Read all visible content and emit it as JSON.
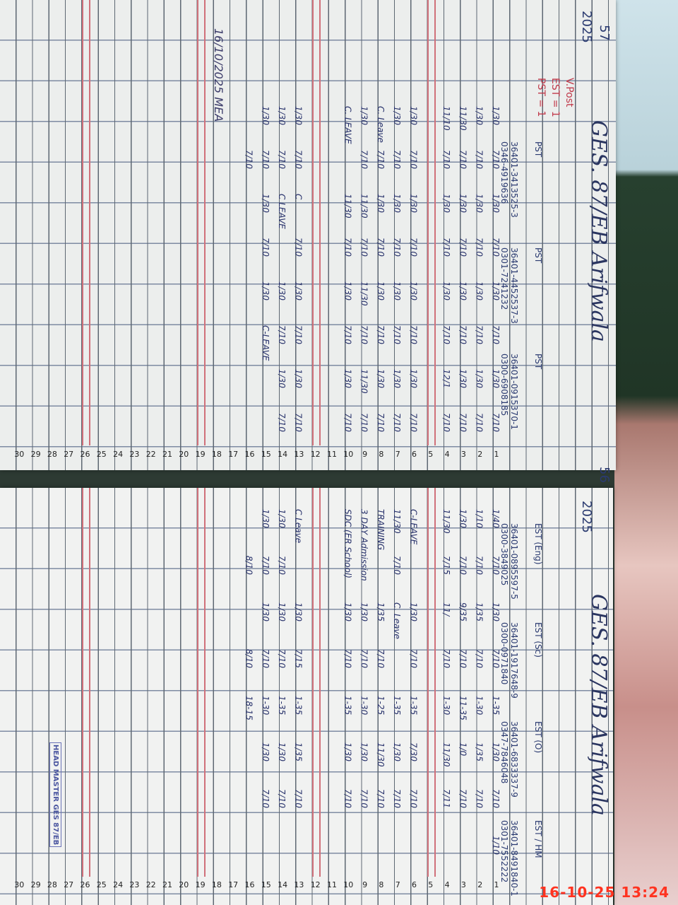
{
  "photo_timestamp": "16-10-25 13:24",
  "pages": [
    {
      "page_number": "57",
      "year": "2025",
      "school": "GES. 87/EB Arifwala",
      "posts_note": [
        "V.Post",
        "EST = 1",
        "PST = 1"
      ],
      "staff": [
        {
          "post": "PST",
          "cnic": "36401-3413525-3",
          "phone": "0346-4919636"
        },
        {
          "post": "PST",
          "cnic": "36401-4452537-3",
          "phone": "0301-7241232"
        },
        {
          "post": "PST",
          "cnic": "36401-0915370-1",
          "phone": "0300-6908185"
        }
      ],
      "rows": [
        [
          "1/30",
          "7/10",
          "1/30",
          "7/10",
          "1/30",
          "7/10",
          "1/30",
          "7/10"
        ],
        [
          "1/30",
          "7/10",
          "1/30",
          "7/10",
          "1/30",
          "7/10",
          "1/30",
          "7/10"
        ],
        [
          "11/30",
          "7/10",
          "1/30",
          "7/10",
          "1/30",
          "7/10",
          "1/30",
          "7/10"
        ],
        [
          "11/10",
          "7/10",
          "1/30",
          "7/10",
          "1/30",
          "7/10",
          "12/1",
          "7/10"
        ],
        [],
        [
          "1/30",
          "7/10",
          "1/30",
          "7/10",
          "1/30",
          "7/10",
          "1/30",
          "7/10"
        ],
        [
          "1/30",
          "7/10",
          "1/30",
          "7/10",
          "1/30",
          "7/10",
          "1/30",
          "7/10"
        ],
        [
          "C. Leave",
          "7/10",
          "1/30",
          "7/10",
          "1/30",
          "7/10",
          "1/30",
          "7/10"
        ],
        [
          "1/30",
          "7/10",
          "11/30",
          "7/10",
          "11/30",
          "7/10",
          "11/30",
          "7/10"
        ],
        [
          "C. LEAVE",
          "",
          "11/30",
          "7/10",
          "1/30",
          "7/10",
          "1/30",
          "7/10"
        ],
        [],
        [],
        [
          "1/30",
          "7/10",
          "C",
          "7/10",
          "1/30",
          "7/10",
          "1/30",
          "7/10"
        ],
        [
          "1/30",
          "7/10",
          "C LEAVE",
          "",
          "1/30",
          "7/10",
          "1/30",
          "7/10"
        ],
        [
          "1/30",
          "7/10",
          "1/30",
          "7/10",
          "1/30",
          "C-LEAVE"
        ],
        [
          "",
          "7/10"
        ]
      ],
      "signature": "16/10/2025 MEA"
    },
    {
      "page_number": "56",
      "year": "2025",
      "school": "GES. 87/EB Arifwala",
      "staff": [
        {
          "post": "EST (Eng)",
          "cnic": "36401-0895597-5",
          "phone": "0300-3849025"
        },
        {
          "post": "EST (Sc)",
          "cnic": "36401-1917648-9",
          "phone": "0300-0971840"
        },
        {
          "post": "EST (O)",
          "cnic": "36401-6833337-9",
          "phone": "0347-7846048"
        },
        {
          "post": "EST / HM",
          "cnic": "36401-8491840-1",
          "phone": "0301-7552222"
        }
      ],
      "rows": [
        [
          "1/40",
          "7/10",
          "1/30",
          "7/10",
          "1-35",
          "1/30",
          "7/10",
          "1/10"
        ],
        [
          "1/10",
          "7/10",
          "1/35",
          "7/10",
          "1-30",
          "1/35",
          "7/10"
        ],
        [
          "1/30",
          "7/10",
          "9/35",
          "7/10",
          "11-35",
          "1/0",
          "7/10"
        ],
        [
          "11/30",
          "7/15",
          "11/",
          "7/10",
          "1-30",
          "11/30",
          "7/11"
        ],
        [],
        [
          "C-LEAVE",
          "",
          "1/30",
          "7/10",
          "1-35",
          "7/30",
          "7/10"
        ],
        [
          "11/30",
          "7/10",
          "C. Leave",
          "",
          "1-35",
          "1/30",
          "7/10"
        ],
        [
          "TRAINING",
          "",
          "1/35",
          "7/10",
          "1-25",
          "11/30",
          "7/10"
        ],
        [
          "3 DAY Admission",
          "",
          "1/30",
          "7/10",
          "1-30",
          "1/30",
          "7/10"
        ],
        [
          "SDC (ER School)",
          "",
          "1/30",
          "7/10",
          "1-35",
          "1/30",
          "7/10"
        ],
        [],
        [],
        [
          "C Leave",
          "",
          "1/30",
          "7/15",
          "1-35",
          "1/35",
          "7/10"
        ],
        [
          "1/30",
          "7/10",
          "1/30",
          "7/10",
          "1-35",
          "1/30",
          "7/10"
        ],
        [
          "1/30",
          "7/10",
          "1/30",
          "7/10",
          "1-30",
          "1/30",
          "7/10"
        ],
        [
          "",
          "8/10",
          "",
          "8/10",
          "18-15"
        ]
      ],
      "seal": "HEAD MASTER GES 87/EB"
    }
  ]
}
